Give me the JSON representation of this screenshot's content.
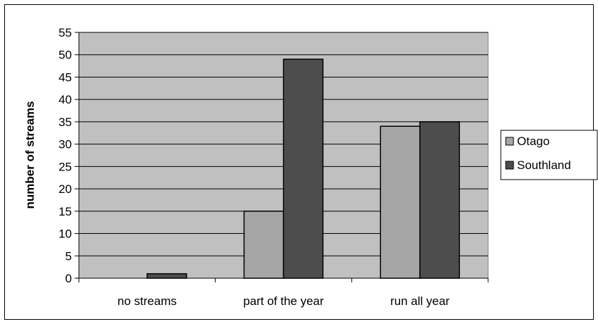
{
  "chart_data": {
    "type": "bar",
    "title": "",
    "xlabel": "",
    "ylabel": "number of streams",
    "ylim": [
      0,
      55
    ],
    "ytick_step": 5,
    "grid": true,
    "legend_position": "right",
    "plot_background": "#c0c0c0",
    "categories": [
      "no streams",
      "part of the year",
      "run all year"
    ],
    "series": [
      {
        "name": "Otago",
        "color": "#a6a6a6",
        "values": [
          0,
          15,
          34
        ]
      },
      {
        "name": "Southland",
        "color": "#4d4d4d",
        "values": [
          1,
          49,
          35
        ]
      }
    ]
  }
}
